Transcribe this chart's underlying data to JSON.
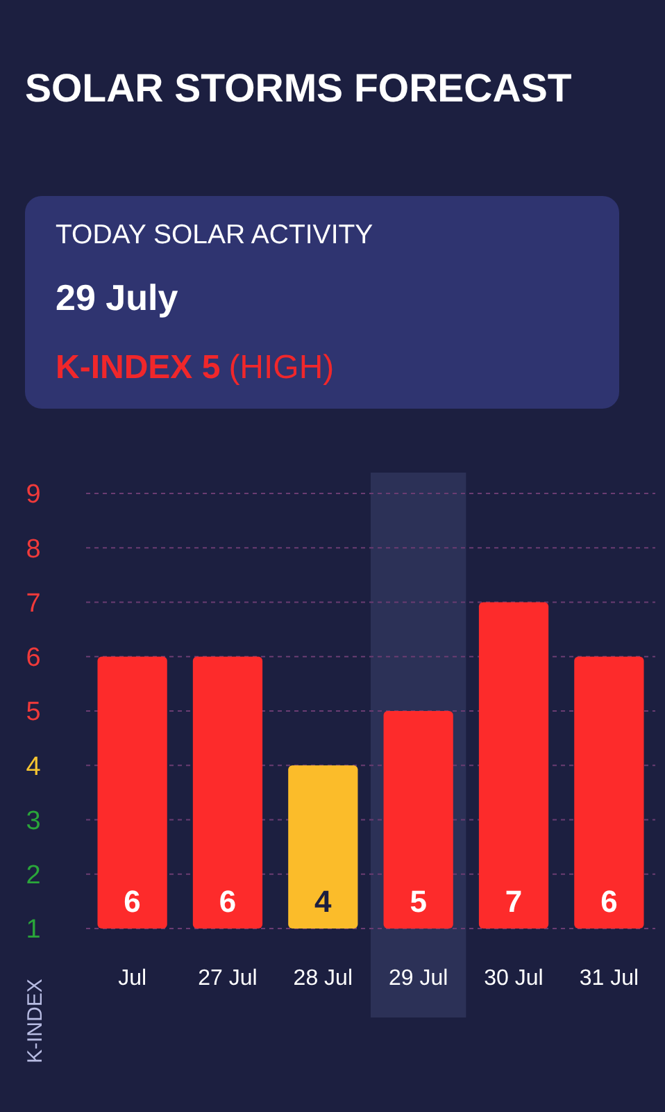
{
  "chart_data": {
    "type": "bar",
    "title": "SOLAR STORMS FORECAST",
    "annotations": [
      "TODAY SOLAR ACTIVITY",
      "29 July",
      "K-INDEX 5",
      "(HIGH)"
    ],
    "ylabel": "K-INDEX",
    "categories": [
      "Jul",
      "27 Jul",
      "28 Jul",
      "29 Jul",
      "30 Jul",
      "31 Jul"
    ],
    "values": [
      6,
      6,
      4,
      5,
      7,
      6
    ],
    "colors": [
      "#fd2b2b",
      "#fd2b2b",
      "#fbbc2a",
      "#fd2b2b",
      "#fd2b2b",
      "#fd2b2b"
    ],
    "ylim": [
      1,
      9
    ],
    "yticks": [
      1,
      2,
      3,
      4,
      5,
      6,
      7,
      8,
      9
    ],
    "grid": "y",
    "bands": [
      {
        "axis": "x",
        "from": "29 Jul",
        "to": "29 Jul",
        "color": "#2c3157"
      }
    ],
    "data_labels": true
  }
}
